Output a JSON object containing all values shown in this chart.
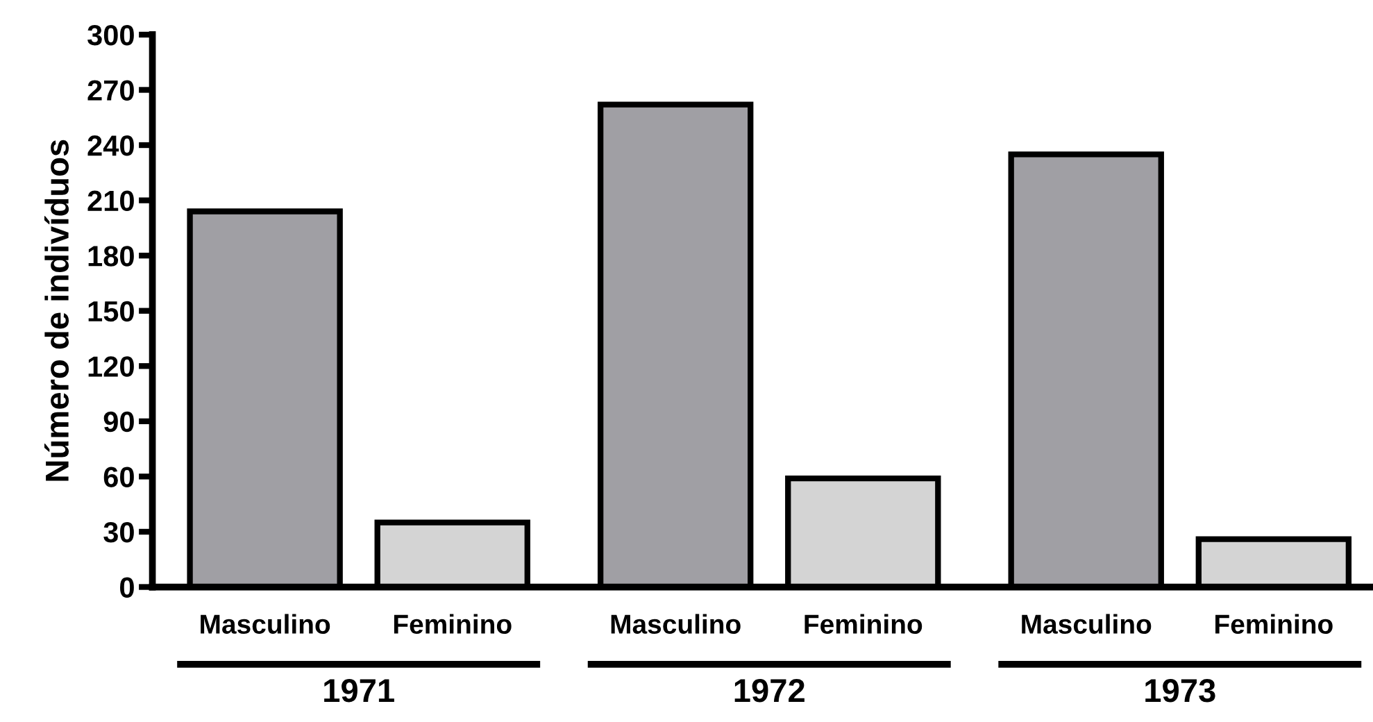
{
  "chart_data": {
    "type": "bar",
    "ylabel": "Número de indivíduos",
    "categories": [
      "Masculino",
      "Feminino",
      "Masculino",
      "Feminino",
      "Masculino",
      "Feminino"
    ],
    "values": [
      204,
      35,
      262,
      59,
      235,
      26
    ],
    "colors": [
      "#a09fa4",
      "#d4d4d4",
      "#a09fa4",
      "#d4d4d4",
      "#a09fa4",
      "#d4d4d4"
    ],
    "ylim": [
      0,
      300
    ],
    "yticks": [
      0,
      30,
      60,
      90,
      120,
      150,
      180,
      210,
      240,
      270,
      300
    ],
    "grid": false,
    "annotations": [
      "1971",
      "1972",
      "1973"
    ]
  }
}
